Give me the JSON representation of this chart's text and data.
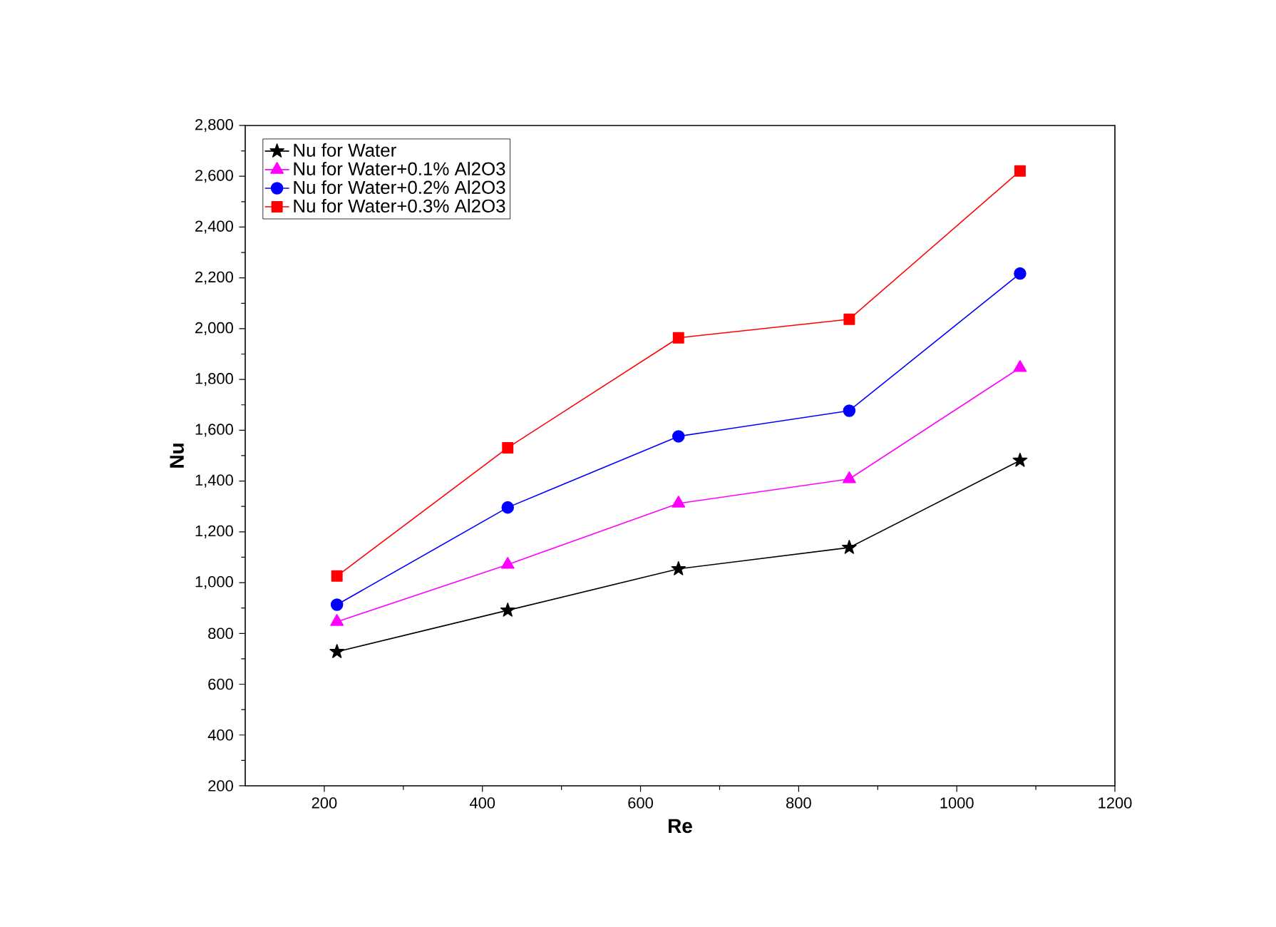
{
  "chart_data": {
    "type": "line",
    "xlabel": "Re",
    "ylabel": "Nu",
    "xlim": [
      100,
      1200
    ],
    "xticks": [
      200,
      400,
      600,
      800,
      1000,
      1200
    ],
    "ylim": [
      200,
      2800
    ],
    "yticks": [
      {
        "value": 200,
        "label": "200"
      },
      {
        "value": 400,
        "label": "400"
      },
      {
        "value": 600,
        "label": "600"
      },
      {
        "value": 800,
        "label": "800"
      },
      {
        "value": 1000,
        "label": "1,000"
      },
      {
        "value": 1200,
        "label": "1,200"
      },
      {
        "value": 1400,
        "label": "1,400"
      },
      {
        "value": 1600,
        "label": "1,600"
      },
      {
        "value": 1800,
        "label": "1,800"
      },
      {
        "value": 2000,
        "label": "2,000"
      },
      {
        "value": 2200,
        "label": "2,200"
      },
      {
        "value": 2400,
        "label": "2,400"
      },
      {
        "value": 2600,
        "label": "2,600"
      },
      {
        "value": 2800,
        "label": "2,800"
      }
    ],
    "x": [
      216,
      432,
      648,
      864,
      1080
    ],
    "legend": "top left",
    "grid": false,
    "line_style": "solid",
    "series": [
      {
        "name": "Nu for Water",
        "color": "#000000",
        "marker": "star",
        "values": [
          728,
          891,
          1054,
          1138,
          1481
        ]
      },
      {
        "name": "Nu for Water+0.1% Al2O3",
        "color": "#ff00ff",
        "marker": "triangle",
        "values": [
          846,
          1071,
          1312,
          1408,
          1846
        ]
      },
      {
        "name": "Nu for Water+0.2% Al2O3",
        "color": "#0000ff",
        "marker": "circle",
        "values": [
          913,
          1296,
          1576,
          1677,
          2217
        ]
      },
      {
        "name": "Nu for Water+0.3% Al2O3",
        "color": "#ff0000",
        "marker": "square",
        "values": [
          1026,
          1531,
          1964,
          2037,
          2621
        ]
      }
    ]
  }
}
